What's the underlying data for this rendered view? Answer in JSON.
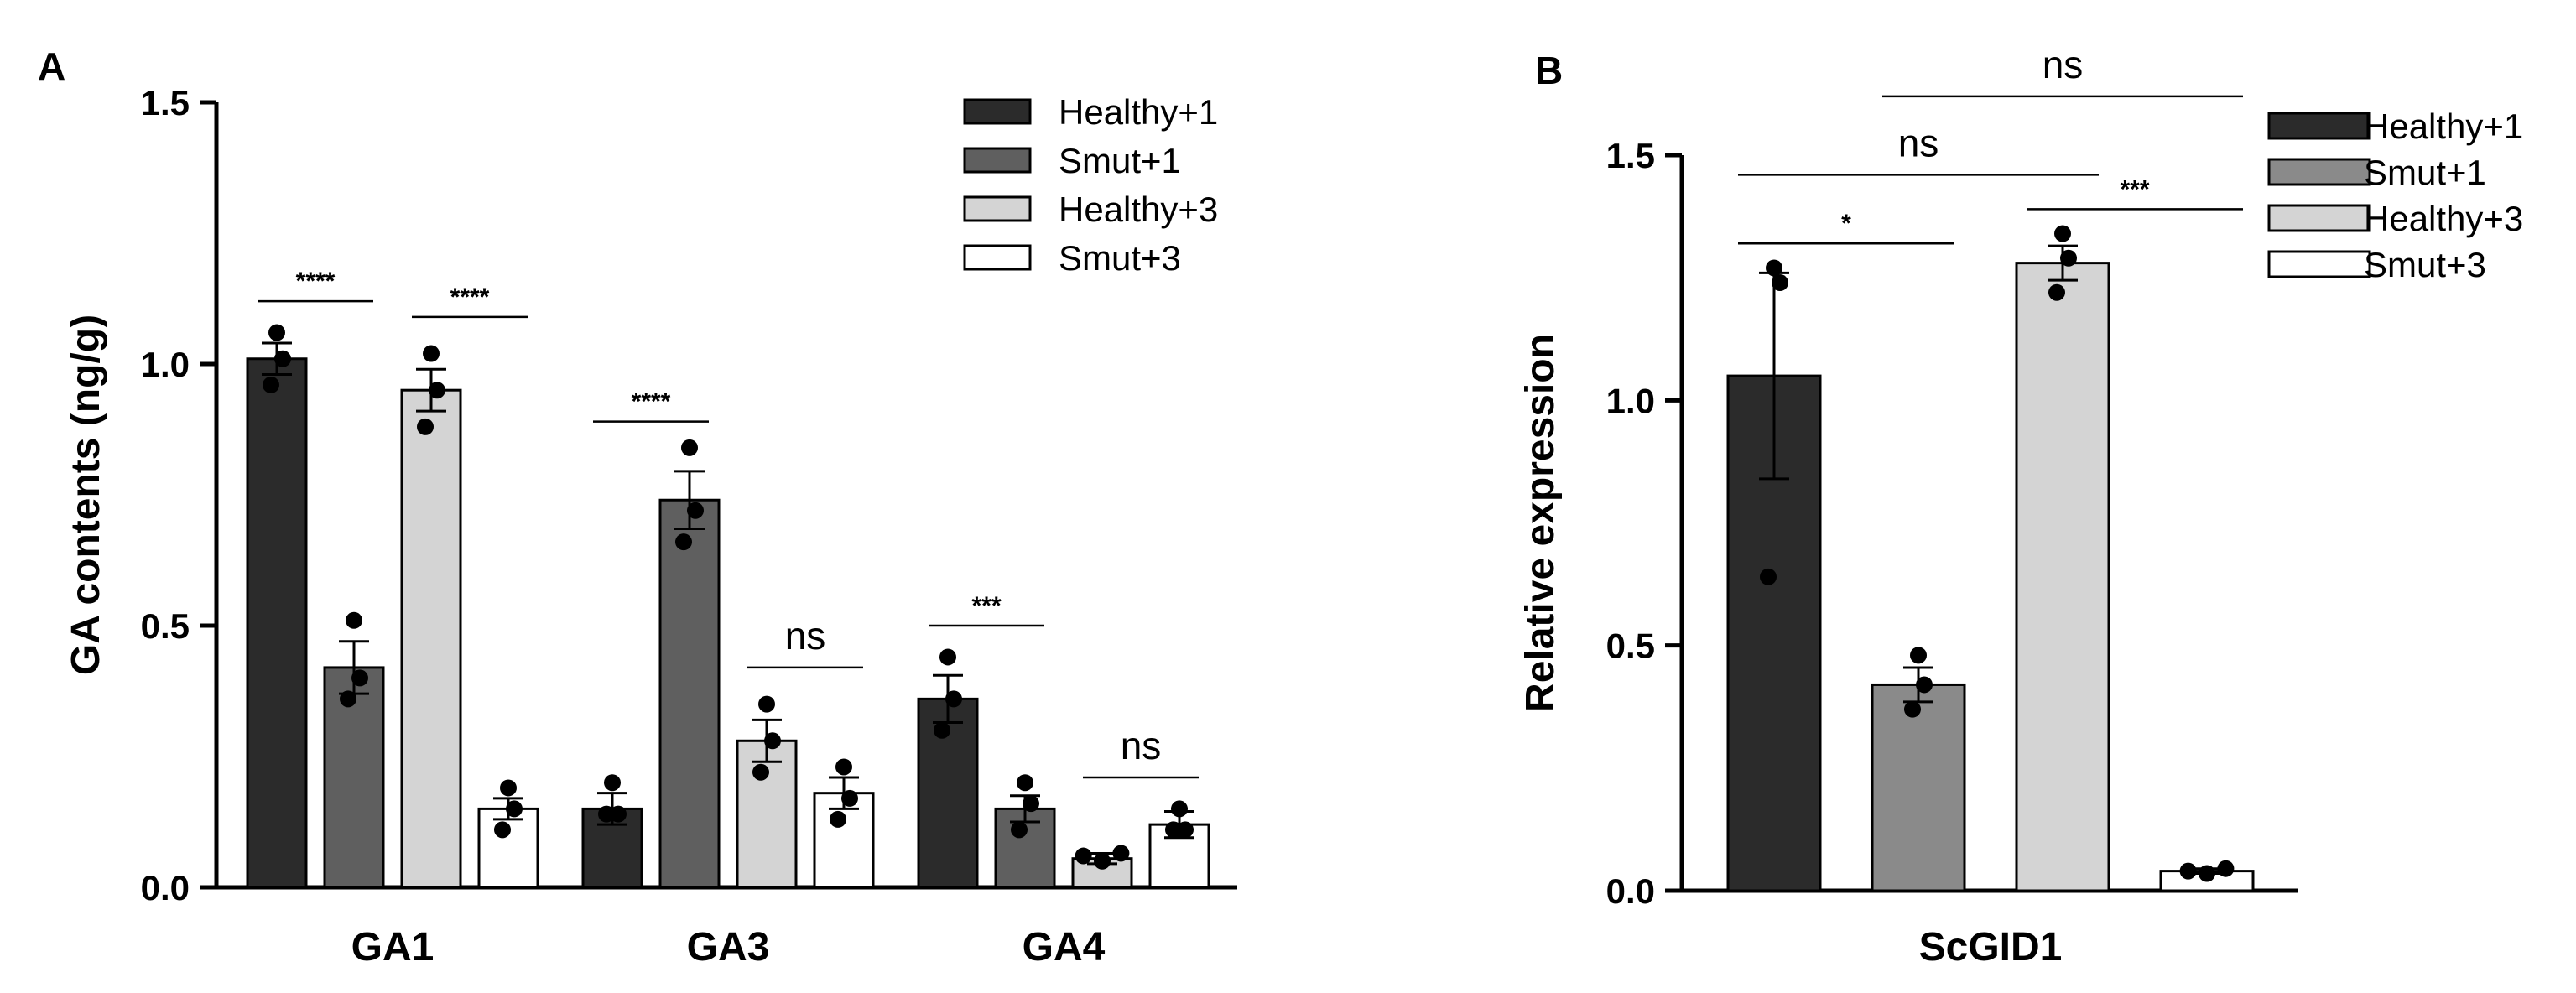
{
  "colors": {
    "Healthy+1": "#2b2b2b",
    "Smut+1": "#5f5f5f",
    "Healthy+3": "#d4d4d4",
    "Smut+3": "#ffffff",
    "Smut+1_B": "#8a8a8a"
  },
  "chart_data": [
    {
      "panel": "A",
      "type": "bar",
      "title": "",
      "xlabel": "",
      "ylabel": "GA contents (ng/g)",
      "ylim": [
        0,
        1.5
      ],
      "yticks": [
        "0.0",
        "0.5",
        "1.0",
        "1.5"
      ],
      "ytick_values": [
        0,
        0.5,
        1.0,
        1.5
      ],
      "legend_position": "top-right",
      "categories": [
        "GA1",
        "GA3",
        "GA4"
      ],
      "series": [
        {
          "name": "Healthy+1",
          "values": [
            1.01,
            0.15,
            0.36
          ],
          "errors": [
            0.03,
            0.03,
            0.045
          ],
          "points": [
            [
              1.06,
              1.01,
              0.96
            ],
            [
              0.2,
              0.14,
              0.14
            ],
            [
              0.44,
              0.36,
              0.3
            ]
          ]
        },
        {
          "name": "Smut+1",
          "values": [
            0.42,
            0.74,
            0.15
          ],
          "errors": [
            0.05,
            0.055,
            0.025
          ],
          "points": [
            [
              0.51,
              0.4,
              0.36
            ],
            [
              0.84,
              0.72,
              0.66
            ],
            [
              0.2,
              0.16,
              0.11
            ]
          ]
        },
        {
          "name": "Healthy+3",
          "values": [
            0.95,
            0.28,
            0.055
          ],
          "errors": [
            0.04,
            0.04,
            0.01
          ],
          "points": [
            [
              1.02,
              0.95,
              0.88
            ],
            [
              0.35,
              0.28,
              0.22
            ],
            [
              0.05,
              0.065,
              0.06
            ]
          ]
        },
        {
          "name": "Smut+3",
          "values": [
            0.15,
            0.18,
            0.12
          ],
          "errors": [
            0.02,
            0.03,
            0.025
          ],
          "points": [
            [
              0.19,
              0.15,
              0.11
            ],
            [
              0.23,
              0.17,
              0.13
            ],
            [
              0.15,
              0.11,
              0.11
            ]
          ]
        }
      ],
      "annotations": [
        {
          "label": "****",
          "group": 0,
          "from": 0,
          "to": 1,
          "y": 1.12
        },
        {
          "label": "****",
          "group": 0,
          "from": 2,
          "to": 3,
          "y": 1.09
        },
        {
          "label": "****",
          "group": 1,
          "from": 0,
          "to": 1,
          "y": 0.89
        },
        {
          "label": "ns",
          "group": 1,
          "from": 2,
          "to": 3,
          "y": 0.42
        },
        {
          "label": "***",
          "group": 2,
          "from": 0,
          "to": 1,
          "y": 0.5
        },
        {
          "label": "ns",
          "group": 2,
          "from": 2,
          "to": 3,
          "y": 0.21
        }
      ]
    },
    {
      "panel": "B",
      "type": "bar",
      "title": "",
      "xlabel": "",
      "ylabel": "Relative expression",
      "ylim": [
        0,
        1.5
      ],
      "yticks": [
        "0.0",
        "0.5",
        "1.0",
        "1.5"
      ],
      "ytick_values": [
        0,
        0.5,
        1.0,
        1.5
      ],
      "legend_position": "top-right",
      "categories": [
        "ScGID1"
      ],
      "series": [
        {
          "name": "Healthy+1",
          "values": [
            1.05
          ],
          "errors": [
            0.21
          ],
          "points": [
            [
              1.27,
              1.24,
              0.64
            ]
          ]
        },
        {
          "name": "Smut+1",
          "values": [
            0.42
          ],
          "errors": [
            0.035
          ],
          "points": [
            [
              0.48,
              0.42,
              0.37
            ]
          ]
        },
        {
          "name": "Healthy+3",
          "values": [
            1.28
          ],
          "errors": [
            0.035
          ],
          "points": [
            [
              1.34,
              1.29,
              1.22
            ]
          ]
        },
        {
          "name": "Smut+3",
          "values": [
            0.04
          ],
          "errors": [
            0.005
          ],
          "points": [
            [
              0.035,
              0.045,
              0.04
            ]
          ]
        }
      ],
      "annotations": [
        {
          "label": "*",
          "from": 0,
          "to": 1,
          "y": 1.32
        },
        {
          "label": "ns",
          "from": 0,
          "to": 2,
          "y": 1.46
        },
        {
          "label": "***",
          "from": 2,
          "to": 3,
          "y": 1.39
        },
        {
          "label": "ns",
          "from": 1,
          "to": 3,
          "y": 1.62
        }
      ]
    }
  ]
}
